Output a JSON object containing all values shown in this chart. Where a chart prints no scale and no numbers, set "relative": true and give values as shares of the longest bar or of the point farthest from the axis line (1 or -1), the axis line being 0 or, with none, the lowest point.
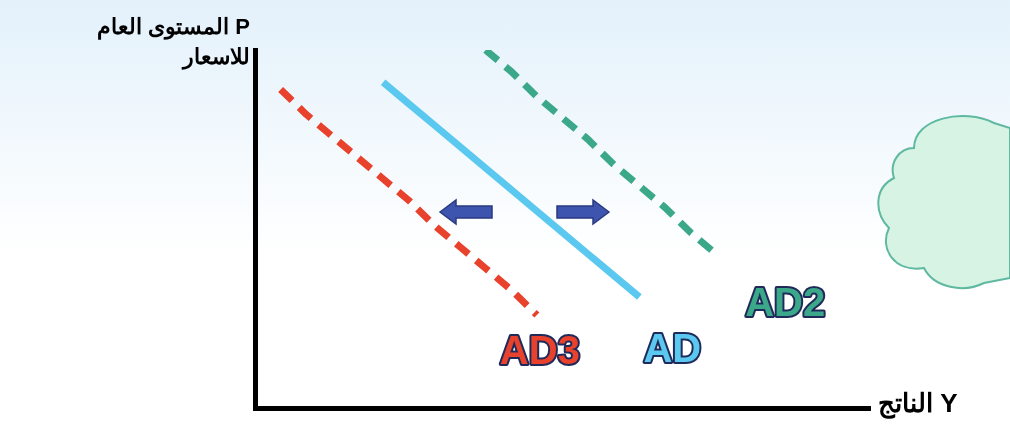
{
  "chart_data": {
    "type": "line",
    "relative": true,
    "ylabel": "P المستوى العام للاسعار",
    "xlabel": "الناتج Y",
    "categories": [
      null,
      null,
      null,
      null,
      null,
      null,
      null,
      null,
      null,
      null,
      null,
      null,
      null,
      null,
      null,
      null,
      null,
      null,
      null,
      null,
      null,
      null,
      null,
      null,
      null
    ],
    "series": [
      {
        "name": "AD3",
        "color": "#e8412c",
        "line_style": "dashed",
        "values": [
          null,
          0.89,
          0.82,
          0.76,
          0.7,
          0.64,
          0.58,
          0.51,
          0.45,
          0.39,
          0.33,
          0.26,
          null,
          null,
          null,
          null,
          null,
          null,
          null,
          null,
          null,
          null,
          null,
          null,
          null
        ]
      },
      {
        "name": "AD",
        "color": "#5bc8f0",
        "line_style": "solid",
        "values": [
          null,
          null,
          null,
          null,
          null,
          0.91,
          0.85,
          0.79,
          0.73,
          0.67,
          0.61,
          0.55,
          0.49,
          0.43,
          0.37,
          0.31,
          null,
          null,
          null,
          null,
          null,
          null,
          null,
          null,
          null
        ]
      },
      {
        "name": "AD2",
        "color": "#3aa889",
        "line_style": "dashed",
        "values": [
          null,
          null,
          null,
          null,
          null,
          null,
          null,
          null,
          null,
          1.0,
          0.94,
          0.87,
          0.81,
          0.75,
          0.68,
          0.62,
          0.56,
          0.49,
          0.43,
          null,
          null,
          null,
          null,
          null,
          null
        ]
      }
    ]
  }
}
